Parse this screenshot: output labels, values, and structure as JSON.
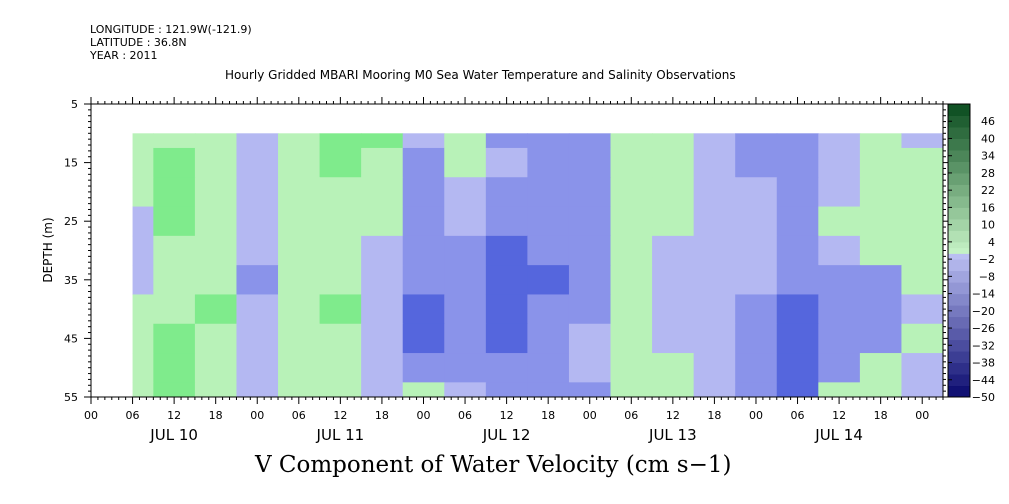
{
  "header": {
    "longitude": "LONGITUDE : 121.9W(-121.9)",
    "latitude": "LATITUDE : 36.8N",
    "year": "YEAR : 2011",
    "title": "Hourly Gridded MBARI Mooring M0 Sea Water Temperature and Salinity Observations"
  },
  "variable_label": "V Component of Water Velocity (cm s−1)",
  "colors": {
    "positive_low": "#b8f2b8",
    "positive_mid": "#7feb8c",
    "positive_high": "#1fcc55",
    "negative_low": "#b4b8f2",
    "negative_mid": "#8a93ea",
    "negative_high": "#5566dd"
  },
  "chart_data": {
    "type": "heatmap",
    "title": "Hourly Gridded MBARI Mooring M0 Sea Water Temperature and Salinity Observations",
    "xlabel": "",
    "ylabel": "DEPTH (m)",
    "colorbar_label": "V Component of Water Velocity (cm s−1)",
    "x_tick_labels": [
      "00",
      "06",
      "12",
      "18",
      "00",
      "06",
      "12",
      "18",
      "00",
      "06",
      "12",
      "18",
      "00",
      "06",
      "12",
      "18",
      "00",
      "06",
      "12",
      "18",
      "00"
    ],
    "x_day_labels": [
      "JUL 10",
      "JUL 11",
      "JUL 12",
      "JUL 13",
      "JUL 14"
    ],
    "x_range_hours": [
      0,
      123
    ],
    "data_x_range_hours": [
      6,
      123
    ],
    "y_ticks": [
      5,
      15,
      25,
      35,
      45,
      55
    ],
    "ylim": [
      55,
      5
    ],
    "data_depth_range": [
      10,
      55
    ],
    "colorbar_levels": [
      -50,
      -44,
      -38,
      -32,
      -26,
      -20,
      -14,
      -8,
      -2,
      4,
      10,
      16,
      22,
      28,
      34,
      40,
      46
    ],
    "colorbar_range": [
      -50,
      52
    ],
    "v_component_profile": {
      "time_hours": [
        6,
        12,
        18,
        24,
        30,
        36,
        42,
        48,
        54,
        60,
        66,
        72,
        78,
        84,
        90,
        96,
        102,
        108,
        114,
        120
      ],
      "depth_m": [
        10,
        15,
        20,
        25,
        30,
        35,
        40,
        45,
        50,
        55
      ],
      "values_cm_s": [
        [
          2,
          6,
          3,
          -4,
          2,
          8,
          7,
          -6,
          1,
          -8,
          -10,
          -12,
          3,
          4,
          -6,
          -8,
          -12,
          -6,
          1,
          -6
        ],
        [
          1,
          8,
          5,
          -3,
          3,
          8,
          6,
          -8,
          1,
          -7,
          -10,
          -11,
          4,
          5,
          -6,
          -8,
          -12,
          -7,
          1,
          3
        ],
        [
          1,
          10,
          5,
          -3,
          2,
          6,
          3,
          -8,
          -4,
          -8,
          -10,
          -10,
          5,
          4,
          -5,
          -7,
          -12,
          -4,
          3,
          4
        ],
        [
          -2,
          8,
          3,
          -5,
          1,
          4,
          1,
          -10,
          -6,
          -12,
          -11,
          -10,
          4,
          2,
          -4,
          -7,
          -12,
          1,
          2,
          5
        ],
        [
          -3,
          4,
          1,
          -6,
          2,
          3,
          -2,
          -12,
          -10,
          -14,
          -12,
          -10,
          3,
          -2,
          -2,
          -6,
          -12,
          -2,
          1,
          4
        ],
        [
          -1,
          2,
          4,
          -8,
          4,
          6,
          -4,
          -12,
          -12,
          -16,
          -14,
          -10,
          1,
          -4,
          -4,
          -7,
          -12,
          -8,
          -10,
          2
        ],
        [
          2,
          6,
          7,
          -6,
          6,
          8,
          -4,
          -14,
          -12,
          -16,
          -12,
          -8,
          2,
          -4,
          -6,
          -10,
          -14,
          -10,
          -12,
          -4
        ],
        [
          3,
          8,
          6,
          -4,
          4,
          6,
          -2,
          -14,
          -10,
          -14,
          -12,
          -6,
          3,
          -2,
          -4,
          -10,
          -14,
          -10,
          -12,
          3
        ],
        [
          4,
          10,
          4,
          -6,
          2,
          3,
          -3,
          -12,
          -8,
          -12,
          -10,
          -6,
          4,
          2,
          -4,
          -8,
          -14,
          -8,
          1,
          -4
        ],
        [
          6,
          12,
          5,
          -6,
          2,
          1,
          -4,
          1,
          -6,
          -10,
          -10,
          -8,
          4,
          4,
          -4,
          -8,
          -14,
          5,
          6,
          -4
        ]
      ]
    }
  }
}
